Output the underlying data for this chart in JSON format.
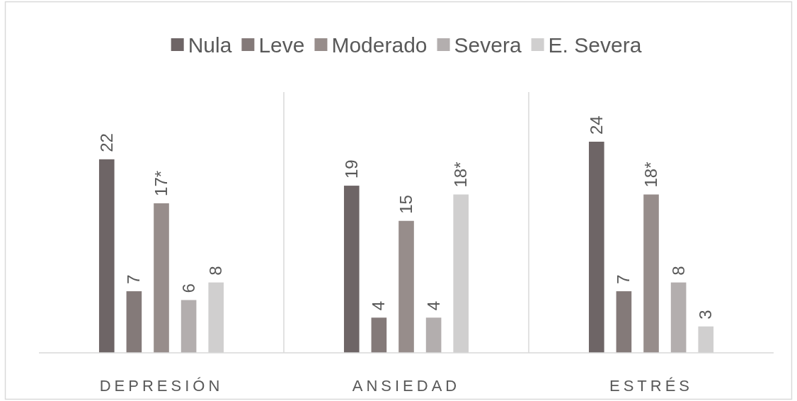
{
  "chart_data": {
    "type": "bar",
    "categories": [
      "DEPRESIÓN",
      "ANSIEDAD",
      "ESTRÉS"
    ],
    "legend": "top",
    "series": [
      {
        "name": "Nula",
        "color": "#6e6566",
        "values": [
          22,
          19,
          24
        ],
        "value_labels": [
          "22",
          "19",
          "24"
        ]
      },
      {
        "name": "Leve",
        "color": "#847a79",
        "values": [
          7,
          4,
          7
        ],
        "value_labels": [
          "7",
          "4",
          "7"
        ]
      },
      {
        "name": "Moderado",
        "color": "#978d8b",
        "values": [
          17,
          15,
          18
        ],
        "value_labels": [
          "17*",
          "15",
          "18*"
        ]
      },
      {
        "name": "Severa",
        "color": "#b3aeae",
        "values": [
          6,
          4,
          8
        ],
        "value_labels": [
          "6",
          "4",
          "8"
        ]
      },
      {
        "name": "E. Severa",
        "color": "#d0cfcf",
        "values": [
          8,
          18,
          3
        ],
        "value_labels": [
          "8",
          "18*",
          "3"
        ]
      }
    ]
  }
}
